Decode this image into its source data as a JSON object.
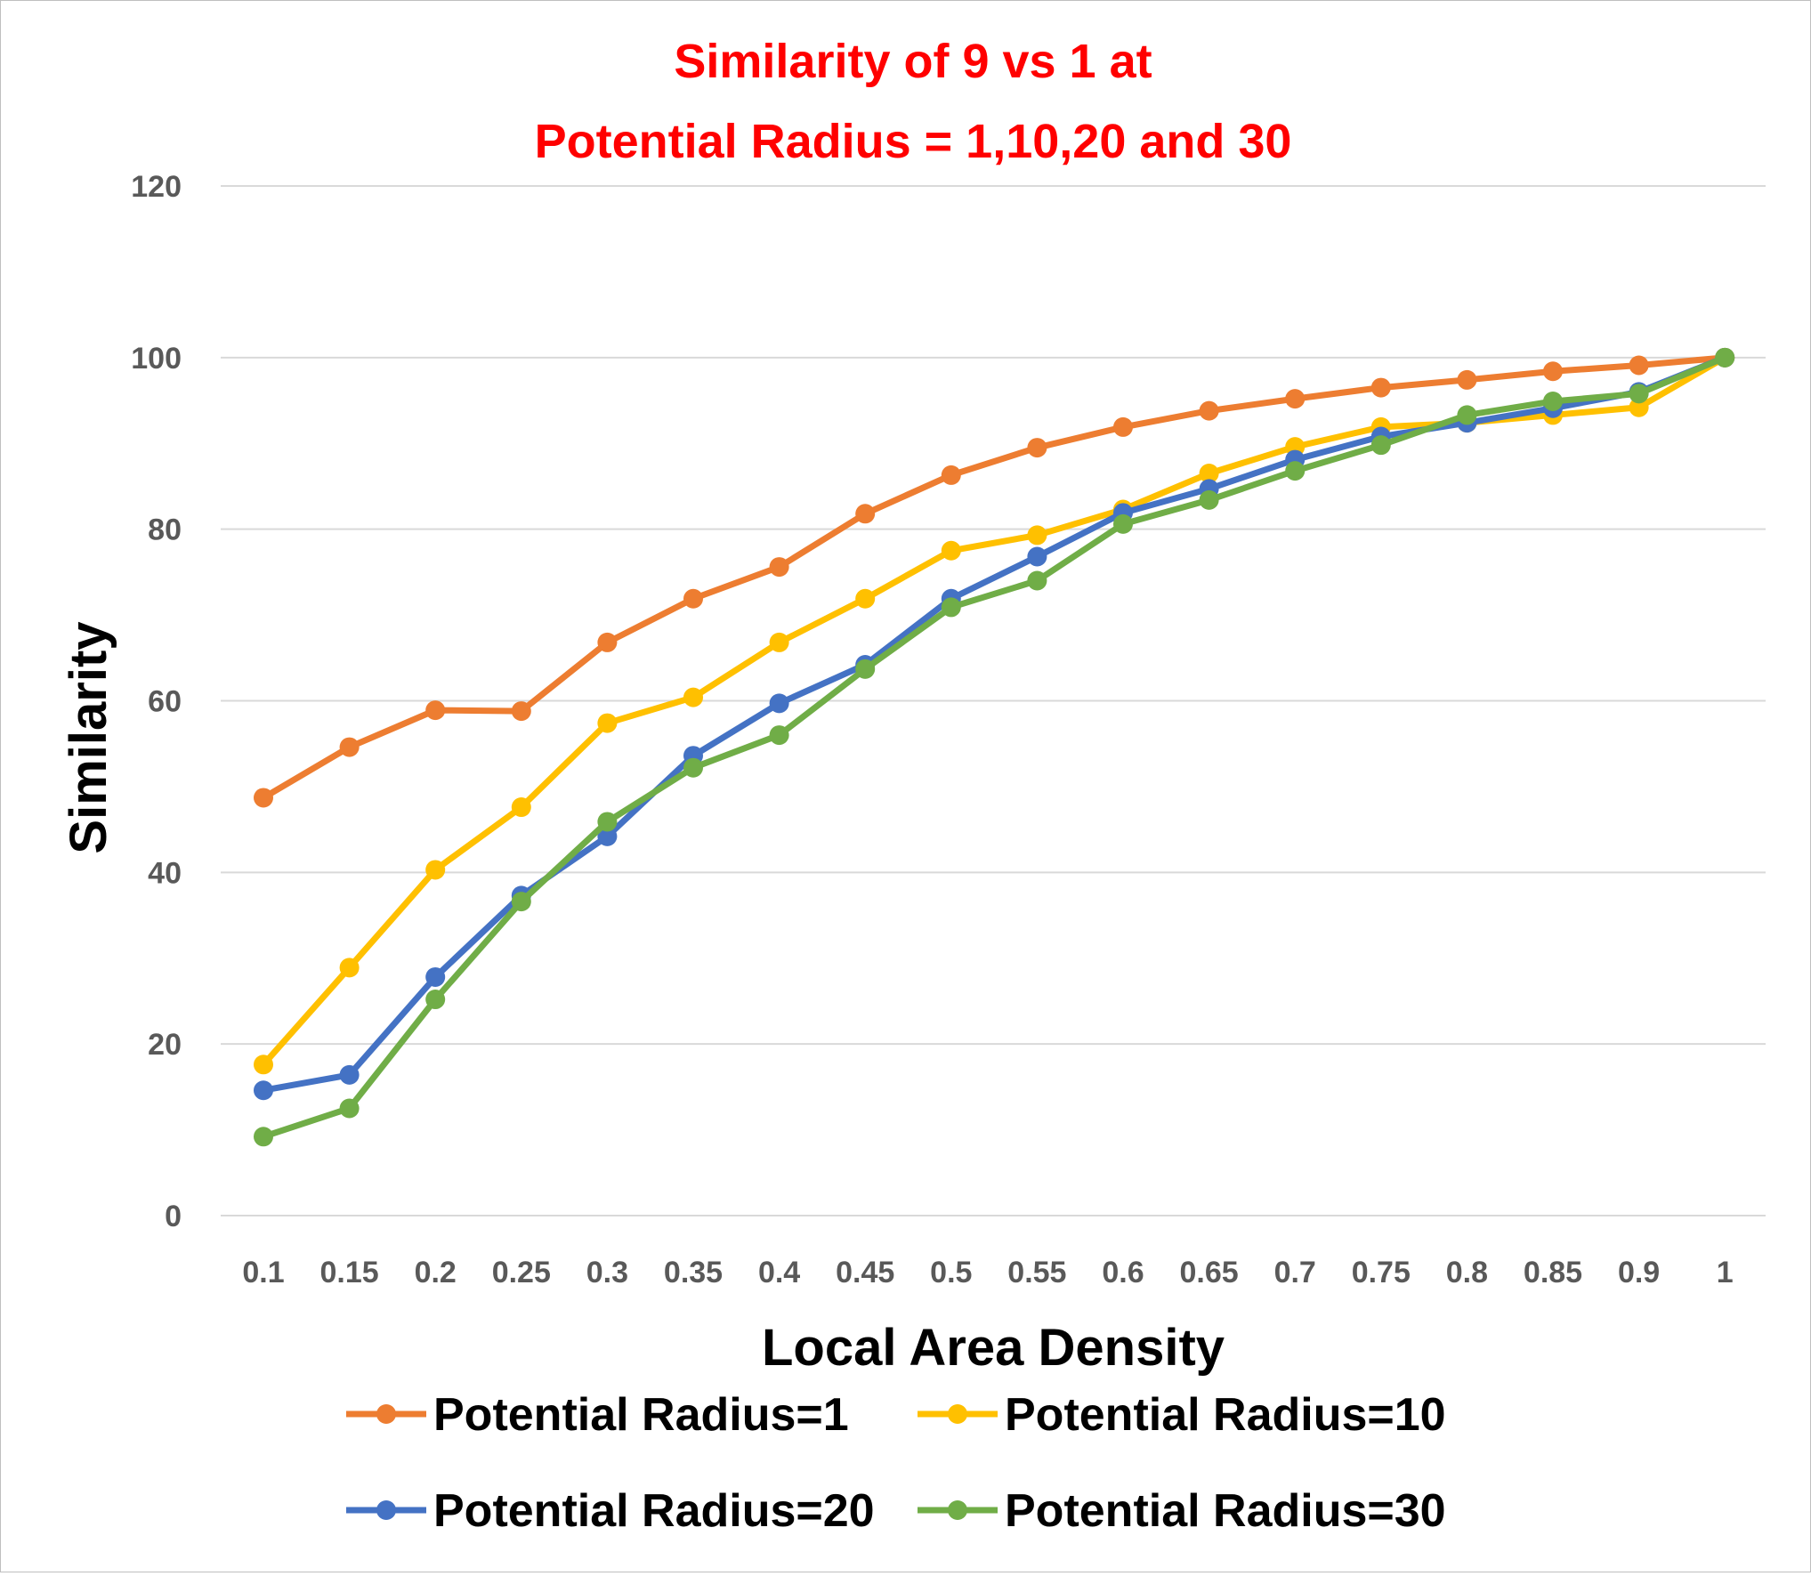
{
  "chart_data": {
    "type": "line",
    "title_lines": [
      "Similarity of  9 vs 1 at",
      "Potential Radius = 1,10,20 and 30"
    ],
    "xlabel": "Local Area Density",
    "ylabel": "Similarity",
    "x": [
      "0.1",
      "0.15",
      "0.2",
      "0.25",
      "0.3",
      "0.35",
      "0.4",
      "0.45",
      "0.5",
      "0.55",
      "0.6",
      "0.65",
      "0.7",
      "0.75",
      "0.8",
      "0.85",
      "0.9",
      "1"
    ],
    "ylim": [
      0,
      120
    ],
    "yticks": [
      0,
      20,
      40,
      60,
      80,
      100,
      120
    ],
    "grid": "horizontal",
    "legend": "bottom",
    "series": [
      {
        "name": "Potential Radius=1",
        "color": "#ed7d31",
        "values": [
          48.7,
          54.6,
          58.9,
          58.8,
          66.8,
          71.9,
          75.6,
          81.8,
          86.3,
          89.5,
          91.9,
          93.8,
          95.2,
          96.5,
          97.4,
          98.4,
          99.1,
          100
        ]
      },
      {
        "name": "Potential Radius=10",
        "color": "#ffc000",
        "values": [
          17.6,
          28.9,
          40.3,
          47.6,
          57.4,
          60.4,
          66.8,
          71.9,
          77.5,
          79.3,
          82.3,
          86.5,
          89.6,
          91.9,
          92.4,
          93.3,
          94.2,
          100
        ]
      },
      {
        "name": "Potential Radius=20",
        "color": "#4472c4",
        "values": [
          14.6,
          16.4,
          27.8,
          37.3,
          44.2,
          53.6,
          59.7,
          64.2,
          71.9,
          76.8,
          81.9,
          84.7,
          88.1,
          90.8,
          92.4,
          94.1,
          96.0,
          100
        ]
      },
      {
        "name": "Potential Radius=30",
        "color": "#70ad47",
        "values": [
          9.2,
          12.5,
          25.2,
          36.6,
          45.9,
          52.2,
          56.0,
          63.7,
          70.9,
          74.0,
          80.6,
          83.4,
          86.8,
          89.8,
          93.3,
          94.9,
          95.8,
          100
        ]
      }
    ]
  }
}
